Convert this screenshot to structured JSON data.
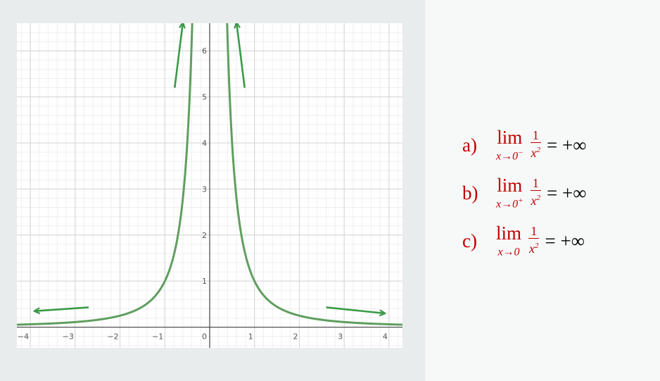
{
  "chart_data": {
    "type": "line",
    "function": "1/x^2",
    "x_ticks": [
      "−4",
      "−3",
      "−2",
      "−1",
      "0",
      "1",
      "2",
      "3",
      "4"
    ],
    "y_ticks": [
      "1",
      "2",
      "3",
      "4",
      "5",
      "6"
    ],
    "xlim": [
      -4.3,
      4.3
    ],
    "ylim": [
      -0.45,
      6.6
    ],
    "grid": true,
    "minor_grid": true,
    "curve_color": "#5f9e5f",
    "arrow_color": "#3a9a48",
    "arrows": [
      {
        "from": [
          -0.78,
          5.2
        ],
        "to": [
          -0.6,
          6.6
        ]
      },
      {
        "from": [
          0.78,
          5.2
        ],
        "to": [
          0.6,
          6.6
        ]
      },
      {
        "from": [
          -2.7,
          0.43
        ],
        "to": [
          -3.9,
          0.35
        ]
      },
      {
        "from": [
          2.6,
          0.43
        ],
        "to": [
          3.9,
          0.3
        ]
      }
    ]
  },
  "limits": [
    {
      "label": "a)",
      "lim": "lim",
      "sub_var": "x→0",
      "sub_sup": "−",
      "num": "1",
      "den": "x",
      "den_sup": "2",
      "result": "= +∞"
    },
    {
      "label": "b)",
      "lim": "lim",
      "sub_var": "x→0",
      "sub_sup": "+",
      "num": "1",
      "den": "x",
      "den_sup": "2",
      "result": "= +∞"
    },
    {
      "label": "c)",
      "lim": "lim",
      "sub_var": "x→0",
      "sub_sup": "",
      "num": "1",
      "den": "x",
      "den_sup": "2",
      "result": "= +∞"
    }
  ]
}
